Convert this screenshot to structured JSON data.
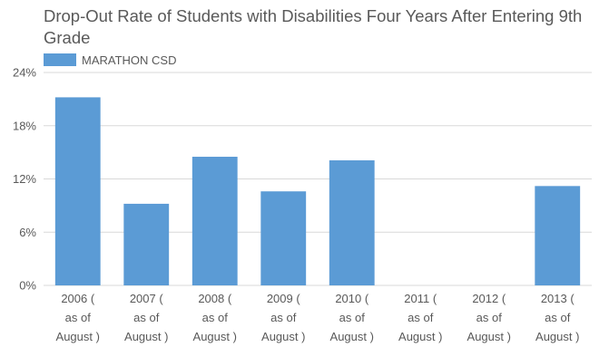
{
  "chart_data": {
    "type": "bar",
    "title": "Drop-Out Rate of Students with Disabilities Four Years After Entering 9th Grade",
    "xlabel": "",
    "ylabel": "",
    "ylim": [
      0,
      24
    ],
    "yticks": [
      "0%",
      "6%",
      "12%",
      "18%",
      "24%"
    ],
    "grid": true,
    "legend_position": "top-left",
    "colors": {
      "bar": "#5b9bd5",
      "grid": "#d9d9d9",
      "text": "#595959"
    },
    "categories": [
      [
        "2006 (",
        "as of",
        "August )"
      ],
      [
        "2007 (",
        "as of",
        "August )"
      ],
      [
        "2008 (",
        "as of",
        "August )"
      ],
      [
        "2009 (",
        "as of",
        "August )"
      ],
      [
        "2010 (",
        "as of",
        "August )"
      ],
      [
        "2011 (",
        "as of",
        "August )"
      ],
      [
        "2012 (",
        "as of",
        "August )"
      ],
      [
        "2013 (",
        "as of",
        "August )"
      ]
    ],
    "series": [
      {
        "name": "MARATHON CSD",
        "values": [
          21.2,
          9.2,
          14.5,
          10.6,
          14.1,
          null,
          null,
          11.2
        ]
      }
    ]
  }
}
